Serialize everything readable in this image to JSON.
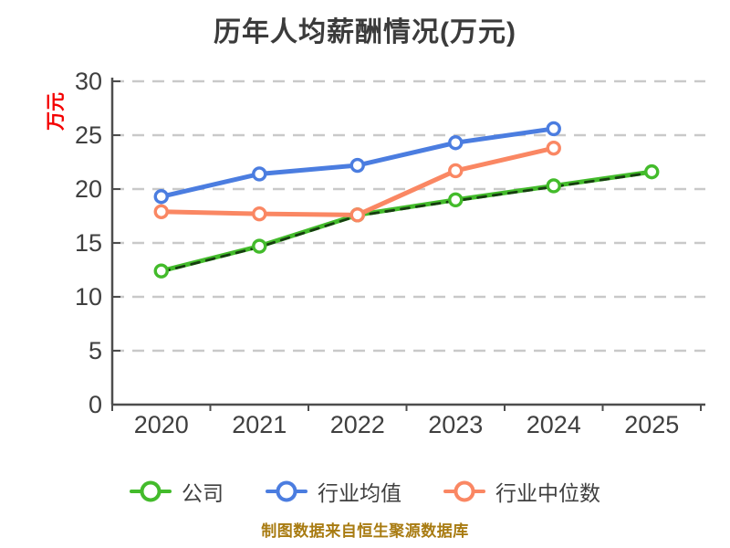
{
  "chart_data": {
    "type": "line",
    "title": "历年人均薪酬情况(万元)",
    "ylabel": "万元",
    "caption": "制图数据来自恒生聚源数据库",
    "categories": [
      "2020",
      "2021",
      "2022",
      "2023",
      "2024",
      "2025"
    ],
    "y_ticks": [
      0,
      5,
      10,
      15,
      20,
      25,
      30
    ],
    "ylim": [
      0,
      30
    ],
    "grid": "horizontal-dashed",
    "legend_position": "bottom",
    "series": [
      {
        "name": "公司",
        "color": "#43bb2b",
        "dash_overlay_color": "#163d10",
        "marker": "open-circle",
        "values": [
          12.4,
          14.7,
          17.6,
          19.0,
          20.3,
          21.6
        ]
      },
      {
        "name": "行业均值",
        "color": "#4b7de0",
        "marker": "open-circle",
        "values": [
          19.3,
          21.4,
          22.2,
          24.3,
          25.6,
          null
        ]
      },
      {
        "name": "行业中位数",
        "color": "#fa8763",
        "marker": "open-circle",
        "values": [
          17.9,
          17.7,
          17.6,
          21.7,
          23.8,
          null
        ]
      }
    ],
    "colors": {
      "title_text": "#3b3b3b",
      "tick_text": "#3f3f3f",
      "axis_line": "#4d4d4d",
      "gridline": "#c9c9c9",
      "ylabel_text": "#f40000",
      "caption_text": "#a87b11",
      "background": "#ffffff"
    }
  }
}
